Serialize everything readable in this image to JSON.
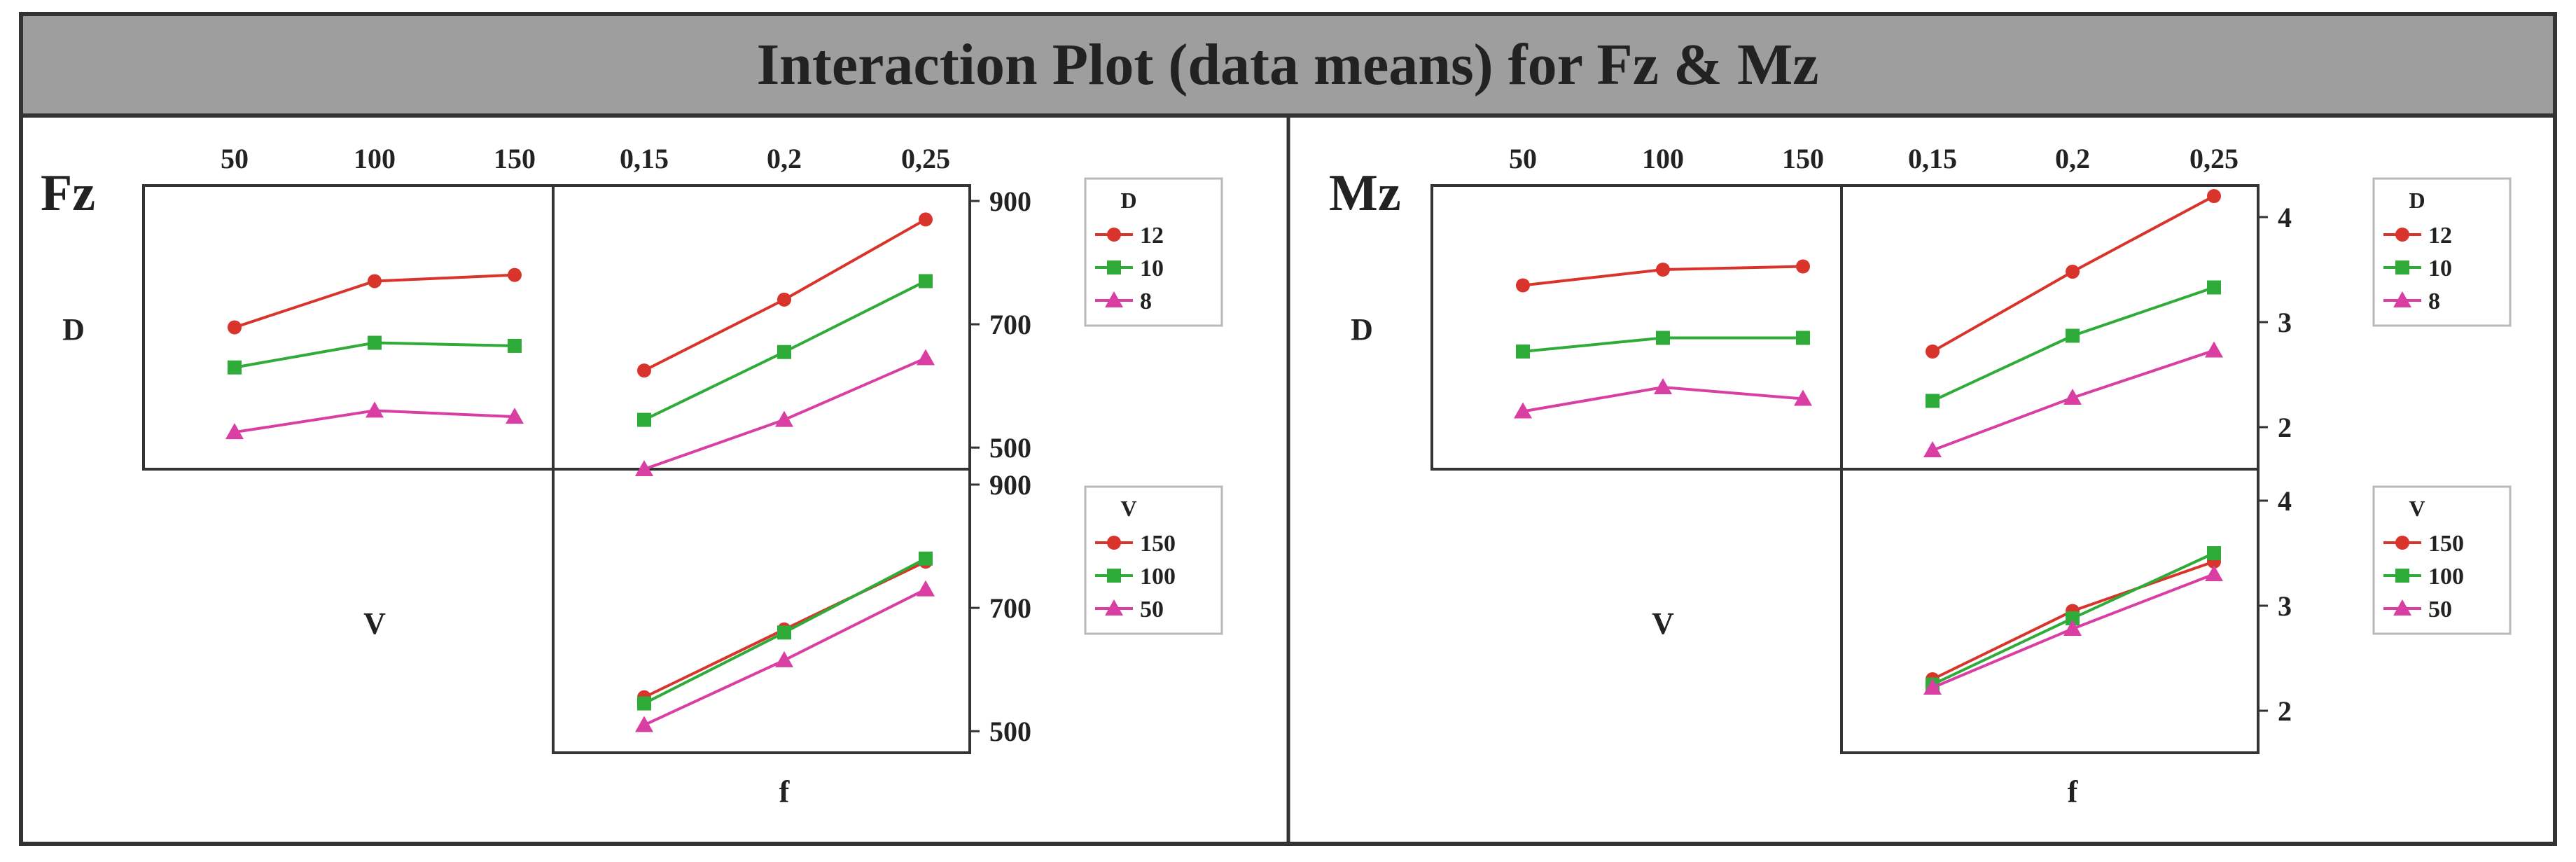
{
  "title": "Interaction Plot (data means) for Fz & Mz",
  "colors": {
    "banner": "#9e9e9e",
    "frame": "#333333",
    "series_1": "#d9342b",
    "series_2": "#2eab39",
    "series_3": "#d93fa2"
  },
  "chart_data": [
    {
      "type": "line",
      "response": "Fz",
      "title": "Fz",
      "factor_labels": {
        "D": "D",
        "V": "V",
        "f": "f"
      },
      "top_axis": {
        "V_ticks": [
          "50",
          "100",
          "150"
        ],
        "f_ticks": [
          "0,15",
          "0,2",
          "0,25"
        ]
      },
      "right_axis": {
        "upper_ticks": [
          "900",
          "700",
          "500"
        ],
        "lower_ticks": [
          "900",
          "700",
          "500"
        ],
        "ylim": [
          465,
          925
        ]
      },
      "legends": [
        {
          "title": "D",
          "entries": [
            "12",
            "10",
            "8"
          ]
        },
        {
          "title": "V",
          "entries": [
            "150",
            "100",
            "50"
          ]
        }
      ],
      "panels": [
        {
          "id": "D_by_V",
          "x_factor": "V",
          "trace_factor": "D",
          "x": [
            50,
            100,
            150
          ],
          "series": [
            {
              "name": "12",
              "marker": "circle",
              "values": [
                695,
                770,
                780
              ]
            },
            {
              "name": "10",
              "marker": "square",
              "values": [
                630,
                670,
                665
              ]
            },
            {
              "name": "8",
              "marker": "triangle",
              "values": [
                525,
                560,
                550
              ]
            }
          ]
        },
        {
          "id": "D_by_f",
          "x_factor": "f",
          "trace_factor": "D",
          "x": [
            0.15,
            0.2,
            0.25
          ],
          "series": [
            {
              "name": "12",
              "marker": "circle",
              "values": [
                625,
                740,
                870
              ]
            },
            {
              "name": "10",
              "marker": "square",
              "values": [
                545,
                655,
                770
              ]
            },
            {
              "name": "8",
              "marker": "triangle",
              "values": [
                465,
                545,
                645
              ]
            }
          ]
        },
        {
          "id": "V_by_f",
          "x_factor": "f",
          "trace_factor": "V",
          "x": [
            0.15,
            0.2,
            0.25
          ],
          "series": [
            {
              "name": "150",
              "marker": "circle",
              "values": [
                555,
                665,
                775
              ]
            },
            {
              "name": "100",
              "marker": "square",
              "values": [
                545,
                660,
                780
              ]
            },
            {
              "name": "50",
              "marker": "triangle",
              "values": [
                510,
                615,
                730
              ]
            }
          ]
        }
      ]
    },
    {
      "type": "line",
      "response": "Mz",
      "title": "Mz",
      "factor_labels": {
        "D": "D",
        "V": "V",
        "f": "f"
      },
      "top_axis": {
        "V_ticks": [
          "50",
          "100",
          "150"
        ],
        "f_ticks": [
          "0,15",
          "0,2",
          "0,25"
        ]
      },
      "right_axis": {
        "upper_ticks": [
          "4",
          "3",
          "2"
        ],
        "lower_ticks": [
          "4",
          "3",
          "2"
        ],
        "ylim": [
          1.6,
          4.3
        ]
      },
      "legends": [
        {
          "title": "D",
          "entries": [
            "12",
            "10",
            "8"
          ]
        },
        {
          "title": "V",
          "entries": [
            "150",
            "100",
            "50"
          ]
        }
      ],
      "panels": [
        {
          "id": "D_by_V",
          "x_factor": "V",
          "trace_factor": "D",
          "x": [
            50,
            100,
            150
          ],
          "series": [
            {
              "name": "12",
              "marker": "circle",
              "values": [
                3.35,
                3.5,
                3.53
              ]
            },
            {
              "name": "10",
              "marker": "square",
              "values": [
                2.72,
                2.85,
                2.85
              ]
            },
            {
              "name": "8",
              "marker": "triangle",
              "values": [
                2.15,
                2.38,
                2.27
              ]
            }
          ]
        },
        {
          "id": "D_by_f",
          "x_factor": "f",
          "trace_factor": "D",
          "x": [
            0.15,
            0.2,
            0.25
          ],
          "series": [
            {
              "name": "12",
              "marker": "circle",
              "values": [
                2.72,
                3.48,
                4.2
              ]
            },
            {
              "name": "10",
              "marker": "square",
              "values": [
                2.25,
                2.87,
                3.33
              ]
            },
            {
              "name": "8",
              "marker": "triangle",
              "values": [
                1.78,
                2.28,
                2.73
              ]
            }
          ]
        },
        {
          "id": "V_by_f",
          "x_factor": "f",
          "trace_factor": "V",
          "x": [
            0.15,
            0.2,
            0.25
          ],
          "series": [
            {
              "name": "150",
              "marker": "circle",
              "values": [
                2.3,
                2.95,
                3.42
              ]
            },
            {
              "name": "100",
              "marker": "square",
              "values": [
                2.25,
                2.88,
                3.5
              ]
            },
            {
              "name": "50",
              "marker": "triangle",
              "values": [
                2.22,
                2.78,
                3.3
              ]
            }
          ]
        }
      ]
    }
  ]
}
